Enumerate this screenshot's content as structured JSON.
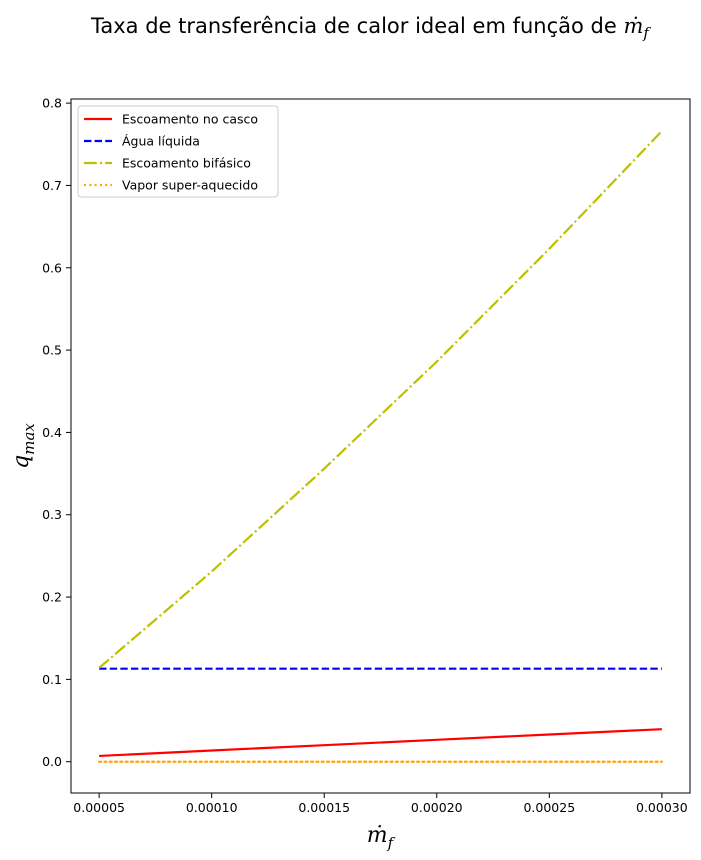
{
  "chart_data": {
    "type": "line",
    "title": "Taxa de transferência de calor ideal em função de ",
    "title_symbol": "ṁ",
    "title_symbol_sub": "f",
    "xlabel_symbol": "ṁ",
    "xlabel_sub": "f",
    "ylabel_symbol": "q",
    "ylabel_sub": "max",
    "xlim": [
      3.75e-05,
      0.0003125
    ],
    "ylim": [
      -0.038,
      0.805
    ],
    "xticks": [
      5e-05,
      0.0001,
      0.00015,
      0.0002,
      0.00025,
      0.0003
    ],
    "xtick_labels": [
      "0.00005",
      "0.00010",
      "0.00015",
      "0.00020",
      "0.00025",
      "0.00030"
    ],
    "yticks": [
      0.0,
      0.1,
      0.2,
      0.3,
      0.4,
      0.5,
      0.6,
      0.7,
      0.8
    ],
    "ytick_labels": [
      "0.0",
      "0.1",
      "0.2",
      "0.3",
      "0.4",
      "0.5",
      "0.6",
      "0.7",
      "0.8"
    ],
    "grid": false,
    "legend_position": "top-left",
    "x": [
      5e-05,
      0.0001,
      0.00015,
      0.0002,
      0.00025,
      0.0003
    ],
    "series": [
      {
        "name": "Escoamento no casco",
        "color": "#ff0000",
        "style": "solid",
        "values": [
          0.007,
          0.0136,
          0.0201,
          0.0266,
          0.0331,
          0.0395
        ]
      },
      {
        "name": "Água líquida",
        "color": "#0000ff",
        "style": "dashed",
        "values": [
          0.113,
          0.113,
          0.113,
          0.113,
          0.113,
          0.113
        ]
      },
      {
        "name": "Escoamento bifásico",
        "color": "#bfbf00",
        "style": "dashdot",
        "values": [
          0.114,
          0.231,
          0.356,
          0.486,
          0.623,
          0.766
        ]
      },
      {
        "name": "Vapor super-aquecido",
        "color": "#ffa500",
        "style": "dotted",
        "values": [
          0.0,
          0.0,
          0.0,
          0.0,
          0.0,
          0.0
        ]
      }
    ]
  }
}
